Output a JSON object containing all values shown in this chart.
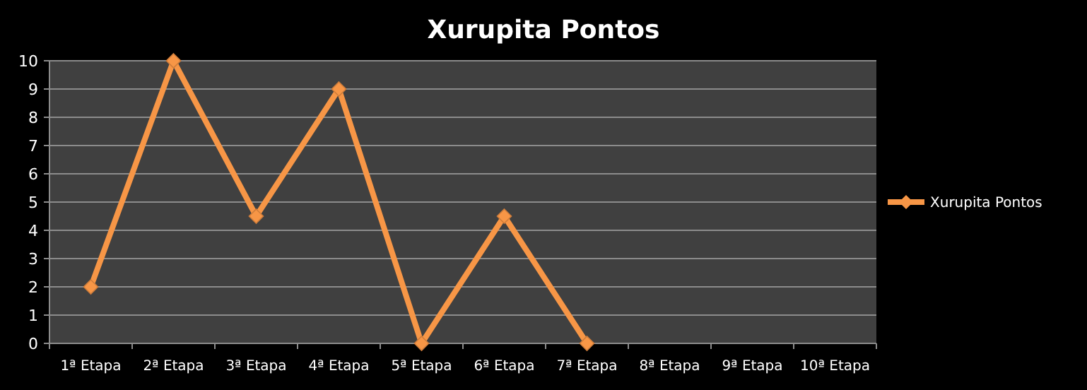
{
  "chart_data": {
    "type": "line",
    "title": "Xurupita Pontos",
    "categories": [
      "1ª Etapa",
      "2ª Etapa",
      "3ª Etapa",
      "4ª Etapa",
      "5ª Etapa",
      "6ª Etapa",
      "7ª Etapa",
      "8ª Etapa",
      "9ª Etapa",
      "10ª Etapa"
    ],
    "series": [
      {
        "name": "Xurupita Pontos",
        "color": "#f79646",
        "values": [
          2,
          10,
          4.5,
          9,
          0,
          4.5,
          0,
          null,
          null,
          null
        ]
      }
    ],
    "ylim": [
      0,
      10
    ],
    "yticks": [
      0,
      1,
      2,
      3,
      4,
      5,
      6,
      7,
      8,
      9,
      10
    ],
    "grid": "y",
    "legend": "right",
    "marker": "diamond",
    "line_style": "solid"
  }
}
